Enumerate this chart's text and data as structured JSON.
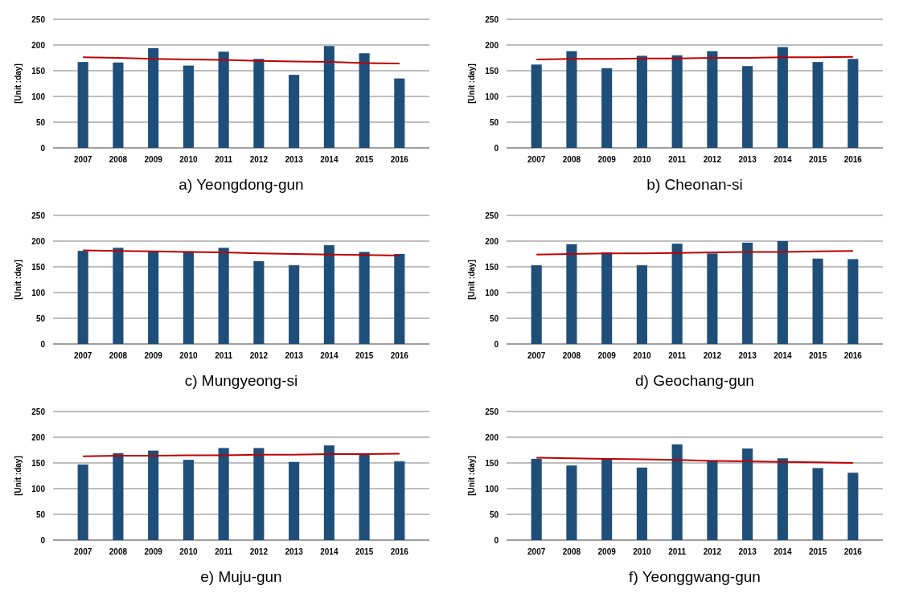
{
  "chart_data": [
    {
      "type": "bar",
      "title": "a)  Yeongdong-gun",
      "ylabel": "[Unit :day]",
      "categories": [
        "2007",
        "2008",
        "2009",
        "2010",
        "2011",
        "2012",
        "2013",
        "2014",
        "2015",
        "2016"
      ],
      "ylim": [
        0,
        250
      ],
      "yticks": [
        0,
        50,
        100,
        150,
        200,
        250
      ],
      "grid": "y",
      "series": [
        {
          "color": "#1f4e79",
          "values": [
            167,
            166,
            194,
            160,
            187,
            173,
            142,
            198,
            184,
            135
          ]
        },
        {
          "type": "line",
          "color": "#c00000",
          "values": [
            176,
            175,
            173,
            172,
            171,
            169,
            168,
            167,
            165,
            164
          ]
        }
      ]
    },
    {
      "type": "bar",
      "title": "b)  Cheonan-si",
      "ylabel": "[Unit :day]",
      "categories": [
        "2007",
        "2008",
        "2009",
        "2010",
        "2011",
        "2012",
        "2013",
        "2014",
        "2015",
        "2016"
      ],
      "ylim": [
        0,
        250
      ],
      "yticks": [
        0,
        50,
        100,
        150,
        200,
        250
      ],
      "grid": "y",
      "series": [
        {
          "color": "#1f4e79",
          "values": [
            162,
            188,
            155,
            179,
            180,
            188,
            159,
            196,
            167,
            173
          ]
        },
        {
          "type": "line",
          "color": "#c00000",
          "values": [
            172,
            173,
            173,
            174,
            174,
            175,
            175,
            176,
            176,
            177
          ]
        }
      ]
    },
    {
      "type": "bar",
      "title": "c)  Mungyeong-si",
      "ylabel": "[Unit :day]",
      "categories": [
        "2007",
        "2008",
        "2009",
        "2010",
        "2011",
        "2012",
        "2013",
        "2014",
        "2015",
        "2016"
      ],
      "ylim": [
        0,
        250
      ],
      "yticks": [
        0,
        50,
        100,
        150,
        200,
        250
      ],
      "grid": "y",
      "series": [
        {
          "color": "#1f4e79",
          "values": [
            181,
            187,
            180,
            180,
            187,
            161,
            153,
            192,
            179,
            175
          ]
        },
        {
          "type": "line",
          "color": "#c00000",
          "values": [
            182,
            181,
            180,
            179,
            178,
            176,
            175,
            174,
            173,
            172
          ]
        }
      ]
    },
    {
      "type": "bar",
      "title": "d)  Geochang-gun",
      "ylabel": "[Unit :day]",
      "categories": [
        "2007",
        "2008",
        "2009",
        "2010",
        "2011",
        "2012",
        "2013",
        "2014",
        "2015",
        "2016"
      ],
      "ylim": [
        0,
        250
      ],
      "yticks": [
        0,
        50,
        100,
        150,
        200,
        250
      ],
      "grid": "y",
      "series": [
        {
          "color": "#1f4e79",
          "values": [
            153,
            194,
            178,
            153,
            195,
            176,
            197,
            200,
            166,
            165
          ]
        },
        {
          "type": "line",
          "color": "#c00000",
          "values": [
            174,
            175,
            176,
            176,
            177,
            178,
            179,
            179,
            180,
            181
          ]
        }
      ]
    },
    {
      "type": "bar",
      "title": "e)  Muju-gun",
      "ylabel": "[Unit :day]",
      "categories": [
        "2007",
        "2008",
        "2009",
        "2010",
        "2011",
        "2012",
        "2013",
        "2014",
        "2015",
        "2016"
      ],
      "ylim": [
        0,
        250
      ],
      "yticks": [
        0,
        50,
        100,
        150,
        200,
        250
      ],
      "grid": "y",
      "series": [
        {
          "color": "#1f4e79",
          "values": [
            147,
            169,
            174,
            156,
            179,
            179,
            152,
            184,
            168,
            153
          ]
        },
        {
          "type": "line",
          "color": "#c00000",
          "values": [
            163,
            164,
            164,
            165,
            165,
            166,
            166,
            167,
            167,
            168
          ]
        }
      ]
    },
    {
      "type": "bar",
      "title": "f)  Yeonggwang-gun",
      "ylabel": "[Unit :day]",
      "categories": [
        "2007",
        "2008",
        "2009",
        "2010",
        "2011",
        "2012",
        "2013",
        "2014",
        "2015",
        "2016"
      ],
      "ylim": [
        0,
        250
      ],
      "yticks": [
        0,
        50,
        100,
        150,
        200,
        250
      ],
      "grid": "y",
      "series": [
        {
          "color": "#1f4e79",
          "values": [
            158,
            145,
            158,
            141,
            186,
            155,
            178,
            159,
            140,
            131
          ]
        },
        {
          "type": "line",
          "color": "#c00000",
          "values": [
            160,
            159,
            158,
            157,
            156,
            154,
            153,
            152,
            151,
            150
          ]
        }
      ]
    }
  ]
}
